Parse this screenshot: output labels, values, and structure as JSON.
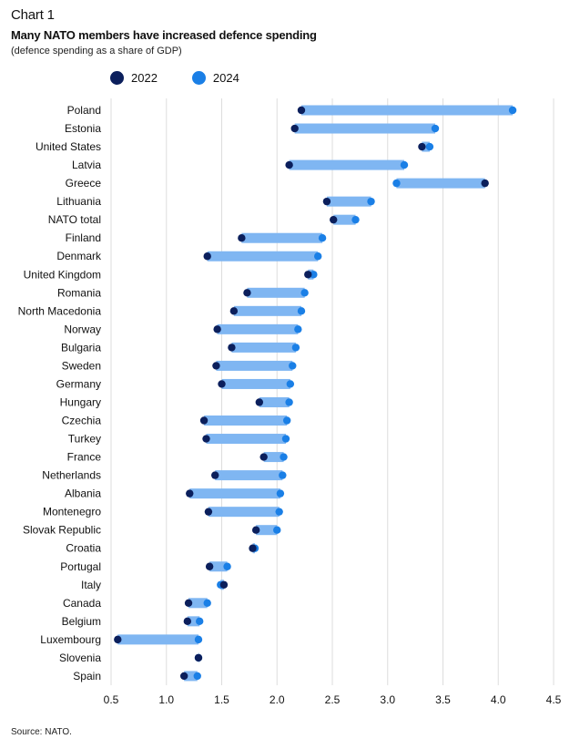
{
  "header": {
    "chart_label": "Chart 1",
    "title": "Many NATO members have increased defence spending",
    "subtitle": "(defence spending as a share of GDP)"
  },
  "legend": [
    {
      "name": "2022",
      "color": "#0b1f5c"
    },
    {
      "name": "2024",
      "color": "#1a7fe6"
    }
  ],
  "colors": {
    "bar": "#7fb6f2",
    "grid": "#dddddd",
    "year_2022": "#0b1f5c",
    "year_2024": "#1a7fe6"
  },
  "source": "Source: NATO.",
  "chart_data": {
    "type": "dumbbell",
    "title": "Many NATO members have increased defence spending",
    "subtitle": "(defence spending as a share of GDP)",
    "xlabel": "",
    "ylabel": "",
    "xlim": [
      0.5,
      4.5
    ],
    "xticks": [
      0.5,
      1.0,
      1.5,
      2.0,
      2.5,
      3.0,
      3.5,
      4.0,
      4.5
    ],
    "xtick_labels": [
      "0.5",
      "1.0",
      "1.5",
      "2.0",
      "2.5",
      "3.0",
      "3.5",
      "4.0",
      "4.5"
    ],
    "grid": true,
    "categories": [
      "Poland",
      "Estonia",
      "United States",
      "Latvia",
      "Greece",
      "Lithuania",
      "NATO total",
      "Finland",
      "Denmark",
      "United Kingdom",
      "Romania",
      "North Macedonia",
      "Norway",
      "Bulgaria",
      "Sweden",
      "Germany",
      "Hungary",
      "Czechia",
      "Turkey",
      "France",
      "Netherlands",
      "Albania",
      "Montenegro",
      "Slovak Republic",
      "Croatia",
      "Portugal",
      "Italy",
      "Canada",
      "Belgium",
      "Luxembourg",
      "Slovenia",
      "Spain"
    ],
    "series": [
      {
        "name": "2022",
        "values": [
          2.22,
          2.16,
          3.31,
          2.11,
          3.88,
          2.45,
          2.51,
          1.68,
          1.37,
          2.28,
          1.73,
          1.61,
          1.46,
          1.59,
          1.45,
          1.5,
          1.84,
          1.34,
          1.36,
          1.88,
          1.44,
          1.21,
          1.38,
          1.81,
          1.78,
          1.39,
          1.52,
          1.2,
          1.19,
          0.56,
          1.29,
          1.16
        ]
      },
      {
        "name": "2024",
        "values": [
          4.13,
          3.43,
          3.38,
          3.15,
          3.08,
          2.85,
          2.71,
          2.41,
          2.37,
          2.33,
          2.25,
          2.22,
          2.19,
          2.17,
          2.14,
          2.12,
          2.11,
          2.09,
          2.08,
          2.06,
          2.05,
          2.03,
          2.02,
          2.0,
          1.8,
          1.55,
          1.49,
          1.37,
          1.3,
          1.29,
          1.29,
          1.28
        ]
      }
    ]
  }
}
